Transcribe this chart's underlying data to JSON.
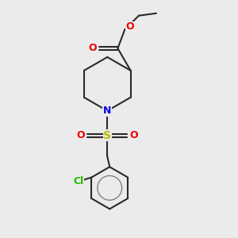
{
  "background_color": "#ebebeb",
  "bond_color": "#2a2a2a",
  "bond_width": 1.5,
  "N_color": "#0000ee",
  "O_color": "#ee0000",
  "S_color": "#bbbb00",
  "Cl_color": "#22bb00",
  "figsize": [
    3.0,
    3.0
  ],
  "dpi": 100,
  "xlim": [
    0,
    10
  ],
  "ylim": [
    0,
    10
  ]
}
